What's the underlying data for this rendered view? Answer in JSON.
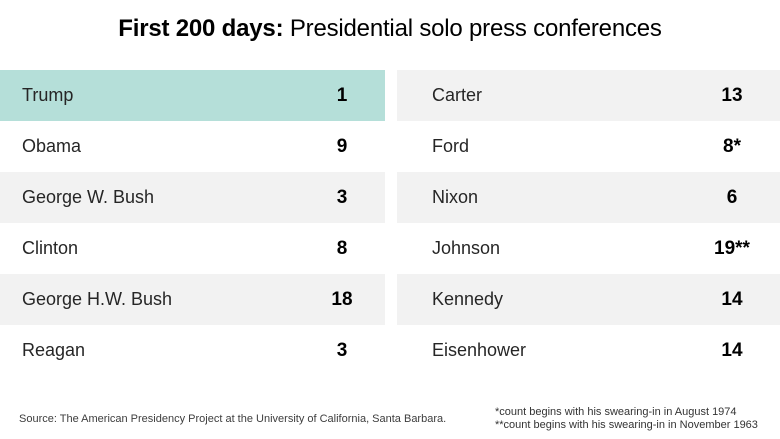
{
  "title": {
    "bold": "First 200 days:",
    "regular": " Presidential solo press conferences"
  },
  "table": {
    "left_rows": [
      {
        "name": "Trump",
        "value": "1",
        "highlight": true
      },
      {
        "name": "Obama",
        "value": "9"
      },
      {
        "name": "George W. Bush",
        "value": "3"
      },
      {
        "name": "Clinton",
        "value": "8"
      },
      {
        "name": "George H.W. Bush",
        "value": "18"
      },
      {
        "name": "Reagan",
        "value": "3"
      }
    ],
    "right_rows": [
      {
        "name": "Carter",
        "value": "13"
      },
      {
        "name": "Ford",
        "value": "8*"
      },
      {
        "name": "Nixon",
        "value": "6"
      },
      {
        "name": "Johnson",
        "value": "19**"
      },
      {
        "name": "Kennedy",
        "value": "14"
      },
      {
        "name": "Eisenhower",
        "value": "14"
      }
    ]
  },
  "footer": {
    "source": "Source: The American Presidency Project at the University of California, Santa Barbara.",
    "notes": [
      "*count begins with his swearing-in in August 1974",
      "**count begins with his swearing-in in November 1963"
    ]
  },
  "colors": {
    "highlight": "#b5dfd9",
    "stripe": "#f2f2f2",
    "title_text": "#000000",
    "name_text": "#262626",
    "value_text": "#000000"
  },
  "chart_data": {
    "type": "table",
    "title": "First 200 days: Presidential solo press conferences",
    "categories": [
      "Trump",
      "Obama",
      "George W. Bush",
      "Clinton",
      "George H.W. Bush",
      "Reagan",
      "Carter",
      "Ford",
      "Nixon",
      "Johnson",
      "Kennedy",
      "Eisenhower"
    ],
    "values": [
      1,
      9,
      3,
      8,
      18,
      3,
      13,
      8,
      6,
      19,
      14,
      14
    ],
    "value_labels": [
      "1",
      "9",
      "3",
      "8",
      "18",
      "3",
      "13",
      "8*",
      "6",
      "19**",
      "14",
      "14"
    ],
    "highlighted_category": "Trump",
    "layout": "two-column striped table, counts right-of-center per column",
    "source": "Source: The American Presidency Project at the University of California, Santa Barbara.",
    "annotations": [
      "*count begins with his swearing-in in August 1974",
      "**count begins with his swearing-in in November 1963"
    ]
  }
}
